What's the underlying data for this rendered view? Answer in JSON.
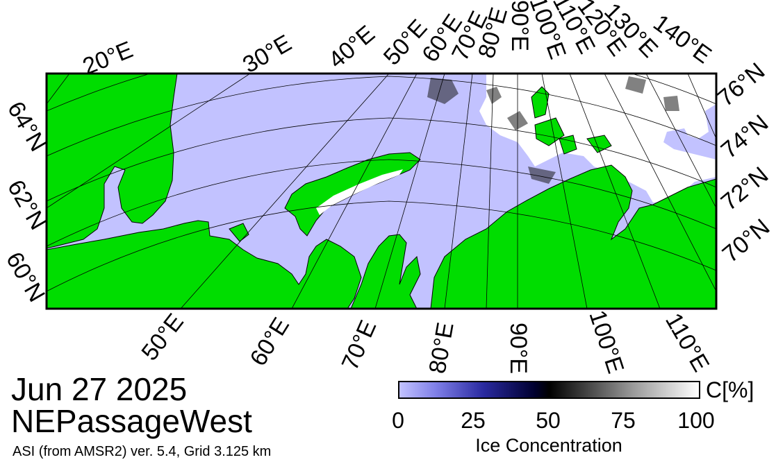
{
  "map": {
    "title_date": "Jun 27 2025",
    "region_name": "NEPassageWest",
    "credit": "ASI (from AMSR2) ver. 5.4,  Grid 3.125 km",
    "colors": {
      "land": "#00dd00",
      "open_water": "#c2c2ff",
      "high_ice": "#ffffff",
      "grid": "#000000",
      "coast": "#000000"
    },
    "top_lon_labels": [
      "20°E",
      "30°E",
      "40°E",
      "50°E",
      "60°E",
      "70°E",
      "80°E",
      "90°E",
      "100°E",
      "110°E",
      "120°E",
      "130°E",
      "140°E"
    ],
    "bottom_lon_labels": [
      "50°E",
      "60°E",
      "70°E",
      "80°E",
      "90°E",
      "100°E",
      "110°E"
    ],
    "left_lat_labels": [
      "64°N",
      "62°N",
      "60°N"
    ],
    "right_lat_labels": [
      "76°N",
      "74°N",
      "72°N",
      "70°N"
    ]
  },
  "colorbar": {
    "unit": "C[%]",
    "ticks": [
      "0",
      "25",
      "50",
      "75",
      "100"
    ],
    "title": "Ice Concentration",
    "range": [
      0,
      100
    ]
  }
}
